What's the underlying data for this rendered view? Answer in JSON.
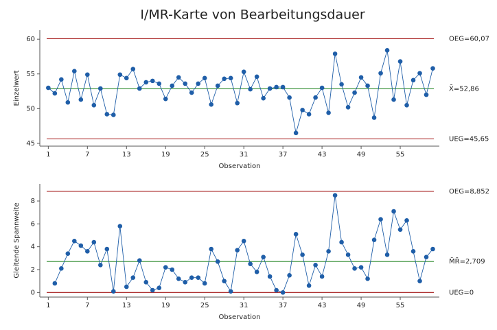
{
  "title": "I/MR-Karte von Bearbeitungsdauer",
  "chart_data": [
    {
      "type": "line",
      "y_label": "Einzelwert",
      "x_label": "Observation",
      "x": [
        1,
        2,
        3,
        4,
        5,
        6,
        7,
        8,
        9,
        10,
        11,
        12,
        13,
        14,
        15,
        16,
        17,
        18,
        19,
        20,
        21,
        22,
        23,
        24,
        25,
        26,
        27,
        28,
        29,
        30,
        31,
        32,
        33,
        34,
        35,
        36,
        37,
        38,
        39,
        40,
        41,
        42,
        43,
        44,
        45,
        46,
        47,
        48,
        49,
        50,
        51,
        52,
        53,
        54,
        55,
        56,
        57,
        58,
        59,
        60
      ],
      "series": [
        {
          "color": "#1f5ea8",
          "values": [
            53.0,
            52.2,
            54.2,
            50.9,
            55.4,
            51.3,
            54.9,
            50.5,
            52.9,
            49.2,
            49.1,
            54.9,
            54.4,
            55.7,
            52.9,
            53.8,
            54.0,
            53.6,
            51.4,
            53.3,
            54.5,
            53.6,
            52.3,
            53.6,
            54.4,
            50.6,
            53.3,
            54.3,
            54.4,
            50.8,
            55.3,
            52.8,
            54.6,
            51.5,
            52.9,
            53.1,
            53.1,
            51.6,
            46.5,
            49.8,
            49.2,
            51.6,
            53.0,
            49.4,
            57.9,
            53.5,
            50.2,
            52.3,
            54.5,
            53.3,
            48.7,
            55.1,
            58.4,
            51.3,
            56.8,
            50.5,
            54.1,
            55.1,
            52.0,
            55.8
          ]
        }
      ],
      "limits": [
        {
          "value": 60.07,
          "label": "OEG=60,07",
          "color": "#a31515"
        },
        {
          "value": 52.86,
          "label": "X̄=52,86",
          "color": "#2e8b2e"
        },
        {
          "value": 45.65,
          "label": "UEG=45,65",
          "color": "#a31515"
        }
      ],
      "xlim": [
        -0.3,
        61
      ],
      "xticks": [
        1,
        7,
        13,
        19,
        25,
        31,
        37,
        43,
        49,
        55
      ],
      "ylim": [
        44.6,
        61.3
      ],
      "yticks": [
        45,
        50,
        55,
        60
      ]
    },
    {
      "type": "line",
      "y_label": "Gleitende Spannweite",
      "x_label": "Observation",
      "x": [
        1,
        2,
        3,
        4,
        5,
        6,
        7,
        8,
        9,
        10,
        11,
        12,
        13,
        14,
        15,
        16,
        17,
        18,
        19,
        20,
        21,
        22,
        23,
        24,
        25,
        26,
        27,
        28,
        29,
        30,
        31,
        32,
        33,
        34,
        35,
        36,
        37,
        38,
        39,
        40,
        41,
        42,
        43,
        44,
        45,
        46,
        47,
        48,
        49,
        50,
        51,
        52,
        53,
        54,
        55,
        56,
        57,
        58,
        59,
        60
      ],
      "series": [
        {
          "color": "#1f5ea8",
          "values": [
            null,
            0.8,
            2.1,
            3.4,
            4.5,
            4.1,
            3.6,
            4.4,
            2.4,
            3.8,
            0.1,
            5.8,
            0.5,
            1.3,
            2.8,
            0.9,
            0.2,
            0.4,
            2.2,
            2.0,
            1.2,
            0.9,
            1.3,
            1.3,
            0.8,
            3.8,
            2.7,
            1.0,
            0.1,
            3.7,
            4.5,
            2.5,
            1.8,
            3.1,
            1.4,
            0.2,
            0.0,
            1.5,
            5.1,
            3.3,
            0.6,
            2.4,
            1.4,
            3.6,
            8.5,
            4.4,
            3.3,
            2.1,
            2.2,
            1.2,
            4.6,
            6.4,
            3.3,
            7.1,
            5.5,
            6.3,
            3.6,
            1.0,
            3.1,
            3.8
          ]
        }
      ],
      "limits": [
        {
          "value": 8.852,
          "label": "OEG=8,852",
          "color": "#a31515"
        },
        {
          "value": 2.709,
          "label": "M̄R̄=2,709",
          "color": "#2e8b2e"
        },
        {
          "value": 0,
          "label": "UEG=0",
          "color": "#a31515"
        }
      ],
      "xlim": [
        -0.3,
        61
      ],
      "xticks": [
        1,
        7,
        13,
        19,
        25,
        31,
        37,
        43,
        49,
        55
      ],
      "ylim": [
        -0.4,
        9.5
      ],
      "yticks": [
        0,
        2,
        4,
        6,
        8
      ]
    }
  ]
}
